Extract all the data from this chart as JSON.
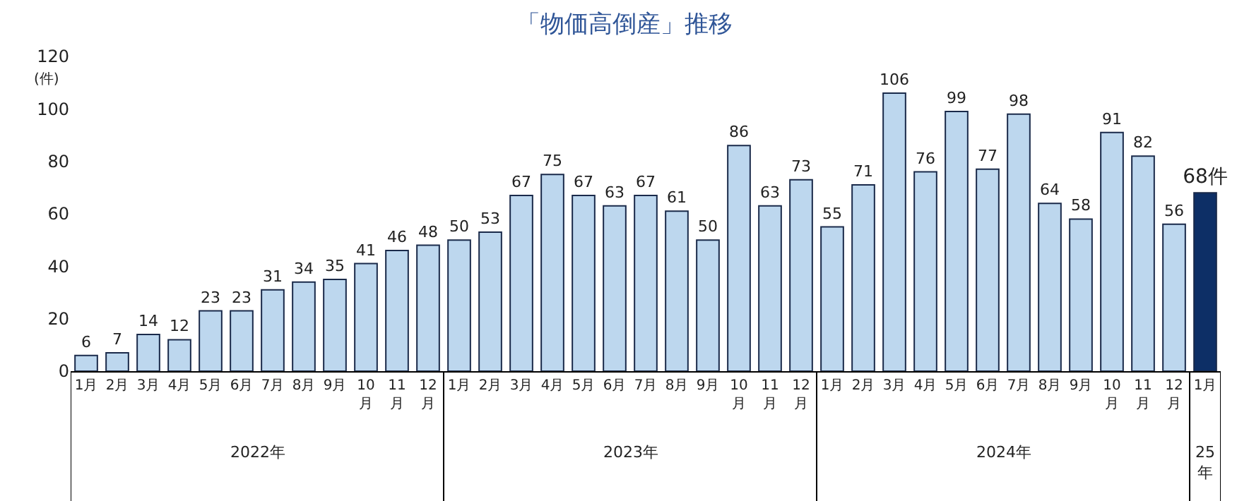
{
  "chart_data": {
    "type": "bar",
    "title": "「物価高倒産」推移",
    "ylabel": "(件)",
    "categories": [
      "1月",
      "2月",
      "3月",
      "4月",
      "5月",
      "6月",
      "7月",
      "8月",
      "9月",
      "10月",
      "11月",
      "12月",
      "1月",
      "2月",
      "3月",
      "4月",
      "5月",
      "6月",
      "7月",
      "8月",
      "9月",
      "10月",
      "11月",
      "12月",
      "1月",
      "2月",
      "3月",
      "4月",
      "5月",
      "6月",
      "7月",
      "8月",
      "9月",
      "10月",
      "11月",
      "12月",
      "1月"
    ],
    "values": [
      6,
      7,
      14,
      12,
      23,
      23,
      31,
      34,
      35,
      41,
      46,
      48,
      50,
      53,
      67,
      75,
      67,
      63,
      67,
      61,
      50,
      86,
      63,
      73,
      55,
      71,
      106,
      76,
      99,
      77,
      98,
      64,
      58,
      91,
      82,
      56,
      68
    ],
    "value_labels": [
      "6",
      "7",
      "14",
      "12",
      "23",
      "23",
      "31",
      "34",
      "35",
      "41",
      "46",
      "48",
      "50",
      "53",
      "67",
      "75",
      "67",
      "63",
      "67",
      "61",
      "50",
      "86",
      "63",
      "73",
      "55",
      "71",
      "106",
      "76",
      "99",
      "77",
      "98",
      "64",
      "58",
      "91",
      "82",
      "56",
      "68件"
    ],
    "colors": [
      "#bdd7ee",
      "#bdd7ee",
      "#bdd7ee",
      "#bdd7ee",
      "#bdd7ee",
      "#bdd7ee",
      "#bdd7ee",
      "#bdd7ee",
      "#bdd7ee",
      "#bdd7ee",
      "#bdd7ee",
      "#bdd7ee",
      "#bdd7ee",
      "#bdd7ee",
      "#bdd7ee",
      "#bdd7ee",
      "#bdd7ee",
      "#bdd7ee",
      "#bdd7ee",
      "#bdd7ee",
      "#bdd7ee",
      "#bdd7ee",
      "#bdd7ee",
      "#bdd7ee",
      "#bdd7ee",
      "#bdd7ee",
      "#bdd7ee",
      "#bdd7ee",
      "#bdd7ee",
      "#bdd7ee",
      "#bdd7ee",
      "#bdd7ee",
      "#bdd7ee",
      "#bdd7ee",
      "#bdd7ee",
      "#bdd7ee",
      "#0d2f66"
    ],
    "ylim": [
      0,
      120
    ],
    "yticks": [
      0,
      20,
      40,
      60,
      80,
      100,
      120
    ],
    "grid": false,
    "annotations": [
      "2022年",
      "2023年",
      "2024年",
      "25年"
    ]
  }
}
